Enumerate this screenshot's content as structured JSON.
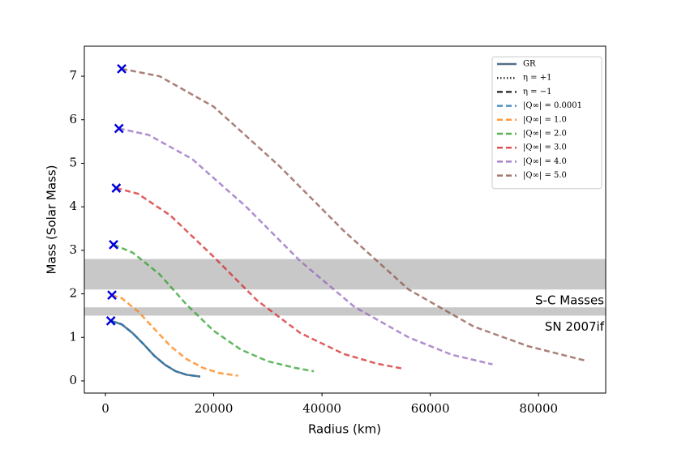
{
  "chart_data": {
    "type": "line",
    "xlabel": "Radius (km)",
    "ylabel": "Mass (Solar Mass)",
    "xlim": [
      -3900,
      92400
    ],
    "ylim": [
      -0.28,
      7.69
    ],
    "xticks": [
      0,
      20000,
      40000,
      60000,
      80000
    ],
    "yticks": [
      0,
      1,
      2,
      3,
      4,
      5,
      6,
      7
    ],
    "bands": [
      {
        "label": "S-C Masses",
        "range": [
          2.1,
          2.8
        ],
        "color": "#c8c8c8"
      },
      {
        "label": "SN 2007if",
        "range": [
          1.5,
          1.69
        ],
        "color": "#c8c8c8"
      }
    ],
    "legend_position": "upper right",
    "legend_extra": [
      {
        "label": "η = +1",
        "dash": "dotted",
        "color": "#000000"
      },
      {
        "label": "η = −1",
        "dash": "dashed",
        "color": "#000000"
      }
    ],
    "series": [
      {
        "name": "GR",
        "color": "#2a4a66",
        "dash": "solid",
        "x": [
          1000,
          3000,
          5000,
          7000,
          9000,
          11000,
          13000,
          15000,
          17500
        ],
        "y": [
          1.38,
          1.3,
          1.1,
          0.85,
          0.58,
          0.37,
          0.22,
          0.14,
          0.1
        ]
      },
      {
        "name": "|Q∞| = 0.0001",
        "color": "#1f77b4",
        "dash": "dashed",
        "x": [
          1000,
          3000,
          5000,
          7000,
          9000,
          11000,
          13000,
          15000,
          17500
        ],
        "y": [
          1.38,
          1.3,
          1.1,
          0.85,
          0.58,
          0.37,
          0.22,
          0.14,
          0.1
        ]
      },
      {
        "name": "|Q∞| = 1.0",
        "color": "#ff7f0e",
        "dash": "dashed",
        "x": [
          1200,
          3000,
          6000,
          9000,
          12000,
          15000,
          18000,
          21000,
          24500
        ],
        "y": [
          1.97,
          1.9,
          1.6,
          1.2,
          0.8,
          0.5,
          0.3,
          0.18,
          0.12
        ]
      },
      {
        "name": "|Q∞| = 2.0",
        "color": "#2ca02c",
        "dash": "dashed",
        "x": [
          1500,
          5000,
          10000,
          15000,
          20000,
          25000,
          30000,
          35000,
          38500
        ],
        "y": [
          3.13,
          2.95,
          2.45,
          1.75,
          1.15,
          0.72,
          0.45,
          0.3,
          0.22
        ]
      },
      {
        "name": "|Q∞| = 3.0",
        "color": "#d62728",
        "dash": "dashed",
        "x": [
          2000,
          6000,
          12000,
          20000,
          28000,
          36000,
          44000,
          50000,
          55000
        ],
        "y": [
          4.43,
          4.3,
          3.8,
          2.85,
          1.85,
          1.1,
          0.62,
          0.4,
          0.28
        ]
      },
      {
        "name": "|Q∞| = 4.0",
        "color": "#9467bd",
        "dash": "dashed",
        "x": [
          2500,
          8000,
          16000,
          26000,
          36000,
          46000,
          56000,
          64000,
          71500
        ],
        "y": [
          5.8,
          5.65,
          5.1,
          4.0,
          2.75,
          1.7,
          1.0,
          0.6,
          0.38
        ]
      },
      {
        "name": "|Q∞| = 5.0",
        "color": "#8c564b",
        "dash": "dashed",
        "x": [
          3000,
          10000,
          20000,
          32000,
          44000,
          56000,
          68000,
          78000,
          88500
        ],
        "y": [
          7.17,
          7.0,
          6.3,
          4.95,
          3.45,
          2.1,
          1.25,
          0.8,
          0.47
        ]
      }
    ],
    "markers": {
      "color": "#0000dd",
      "x": [
        1000,
        1200,
        1500,
        2000,
        2500,
        3000
      ],
      "y": [
        1.38,
        1.97,
        3.13,
        4.43,
        5.8,
        7.17
      ]
    }
  }
}
